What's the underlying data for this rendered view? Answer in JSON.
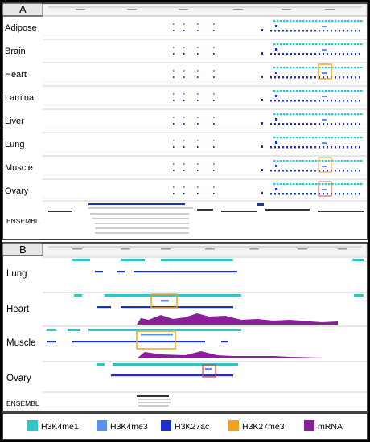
{
  "panel_a": {
    "letter": "A",
    "tracks": [
      "Adipose",
      "Brain",
      "Heart",
      "Lamina",
      "Liver",
      "Lung",
      "Muscle",
      "Ovary"
    ],
    "annotation_label": "ENSEMBL"
  },
  "panel_b": {
    "letter": "B",
    "tracks": [
      "Lung",
      "Heart",
      "Muscle",
      "Ovary"
    ],
    "annotation_label": "ENSEMBL"
  },
  "legend": [
    {
      "label": "H3K4me1",
      "color": "#2ec4c9"
    },
    {
      "label": "H3K4me3",
      "color": "#5b8ff0"
    },
    {
      "label": "H3K27ac",
      "color": "#1c2fc9"
    },
    {
      "label": "H3K27me3",
      "color": "#f5a21b"
    },
    {
      "label": "mRNA",
      "color": "#8a1f9a"
    }
  ],
  "colors": {
    "highlight_box": "#f5a21b",
    "red_box": "#e04040",
    "border": "#000000"
  }
}
